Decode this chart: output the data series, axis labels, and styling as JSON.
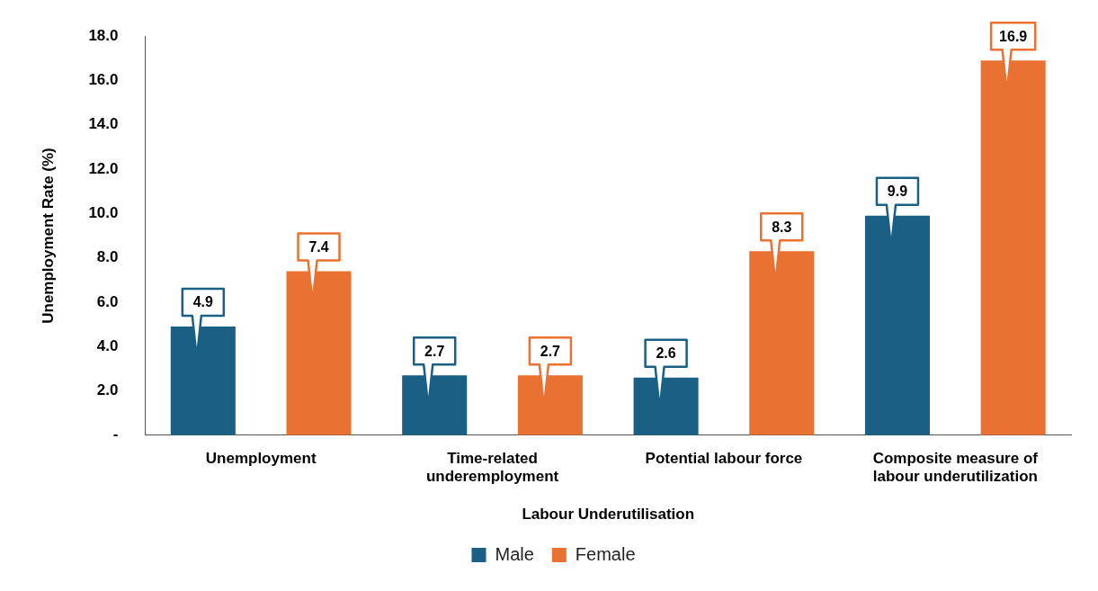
{
  "chart_data": {
    "type": "bar",
    "xlabel": "Labour Underutilisation",
    "ylabel": "Unemployment Rate (%)",
    "categories": [
      "Unemployment",
      "Time-related underemployment",
      "Potential labour force",
      "Composite measure of labour underutilization"
    ],
    "series": [
      {
        "name": "Male",
        "color": "#1a5f84",
        "values": [
          4.9,
          2.7,
          2.6,
          9.9
        ]
      },
      {
        "name": "Female",
        "color": "#e97132",
        "values": [
          7.4,
          2.7,
          8.3,
          16.9
        ]
      }
    ],
    "ylim": [
      0,
      18
    ],
    "yticks": [
      {
        "value": 0,
        "label": "-"
      },
      {
        "value": 2,
        "label": "2.0"
      },
      {
        "value": 4,
        "label": "4.0"
      },
      {
        "value": 6,
        "label": "6.0"
      },
      {
        "value": 8,
        "label": "8.0"
      },
      {
        "value": 10,
        "label": "10.0"
      },
      {
        "value": 12,
        "label": "12.0"
      },
      {
        "value": 14,
        "label": "14.0"
      },
      {
        "value": 16,
        "label": "16.0"
      },
      {
        "value": 18,
        "label": "18.0"
      }
    ],
    "grid": false,
    "legend": "bottom",
    "data_labels": true
  }
}
